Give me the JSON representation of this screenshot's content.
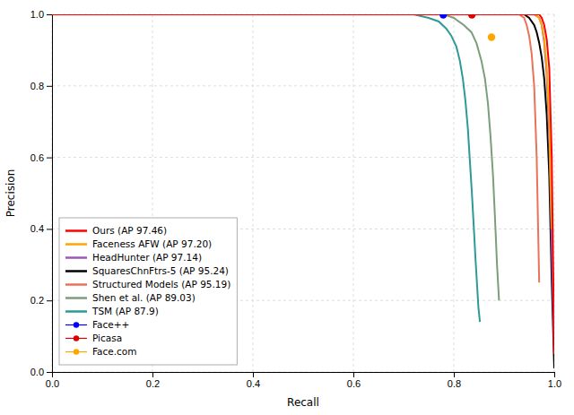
{
  "chart_data": {
    "type": "line",
    "xlabel": "Recall",
    "ylabel": "Precision",
    "xlim": [
      0.0,
      1.0
    ],
    "ylim": [
      0.0,
      1.0
    ],
    "xticks": [
      {
        "value": 0.0,
        "label": "0.0"
      },
      0.2,
      0.4,
      0.6,
      0.8,
      {
        "value": 1.0,
        "label": "1.0"
      }
    ],
    "yticks": [
      {
        "value": 0.0,
        "label": "0.0"
      },
      0.2,
      0.4,
      0.6,
      0.8,
      {
        "value": 1.0,
        "label": "1.0"
      }
    ],
    "grid": true,
    "legend": "lower left",
    "series": [
      {
        "name": "Ours (AP 97.46)",
        "color": "#FF0000",
        "type": "line",
        "x": [
          0.0,
          0.93,
          0.94,
          0.95,
          0.96,
          0.965,
          0.97,
          0.975,
          0.98,
          0.985,
          0.99,
          0.995,
          1.0
        ],
        "values": [
          1.0,
          1.0,
          1.0,
          1.0,
          1.0,
          1.0,
          1.0,
          0.99,
          0.97,
          0.93,
          0.85,
          0.6,
          0.05
        ]
      },
      {
        "name": "Faceness AFW (AP 97.20)",
        "color": "#FFA500",
        "type": "line",
        "x": [
          0.0,
          0.93,
          0.94,
          0.95,
          0.96,
          0.965,
          0.97,
          0.975,
          0.98,
          0.985,
          0.99,
          0.995
        ],
        "values": [
          1.0,
          1.0,
          1.0,
          1.0,
          1.0,
          0.995,
          0.99,
          0.97,
          0.93,
          0.85,
          0.7,
          0.4
        ]
      },
      {
        "name": "HeadHunter (AP 97.14)",
        "color": "#9B59B6",
        "type": "line",
        "x": [
          0.0,
          0.93,
          0.94,
          0.95,
          0.96,
          0.965,
          0.97,
          0.975,
          0.98,
          0.985,
          0.99,
          0.995,
          1.0
        ],
        "values": [
          1.0,
          1.0,
          1.0,
          1.0,
          1.0,
          0.995,
          0.99,
          0.97,
          0.92,
          0.83,
          0.65,
          0.35,
          0.05
        ]
      },
      {
        "name": "SquaresChnFtrs-5 (AP 95.24)",
        "color": "#000000",
        "type": "line",
        "x": [
          0.0,
          0.9,
          0.92,
          0.94,
          0.95,
          0.96,
          0.965,
          0.97,
          0.975,
          0.98,
          0.985,
          0.99,
          0.995,
          1.0
        ],
        "values": [
          1.0,
          1.0,
          1.0,
          1.0,
          0.99,
          0.97,
          0.95,
          0.92,
          0.88,
          0.82,
          0.72,
          0.55,
          0.25,
          0.01
        ]
      },
      {
        "name": "Structured Models (AP 95.19)",
        "color": "#E8735A",
        "type": "line",
        "x": [
          0.0,
          0.9,
          0.92,
          0.93,
          0.94,
          0.945,
          0.95,
          0.955,
          0.96,
          0.965,
          0.97
        ],
        "values": [
          1.0,
          1.0,
          1.0,
          1.0,
          0.99,
          0.97,
          0.94,
          0.89,
          0.8,
          0.6,
          0.25
        ]
      },
      {
        "name": "Shen et al. (AP 89.03)",
        "color": "#7B9E7B",
        "type": "line",
        "x": [
          0.0,
          0.78,
          0.8,
          0.82,
          0.835,
          0.845,
          0.855,
          0.862,
          0.868,
          0.873,
          0.878,
          0.882,
          0.886,
          0.89
        ],
        "values": [
          1.0,
          1.0,
          0.99,
          0.97,
          0.95,
          0.92,
          0.87,
          0.82,
          0.75,
          0.66,
          0.55,
          0.43,
          0.3,
          0.2
        ]
      },
      {
        "name": "TSM (AP 87.9)",
        "color": "#2E9999",
        "type": "line",
        "x": [
          0.0,
          0.72,
          0.75,
          0.77,
          0.785,
          0.795,
          0.805,
          0.812,
          0.818,
          0.823,
          0.828,
          0.832,
          0.836,
          0.84,
          0.843,
          0.846,
          0.849,
          0.852
        ],
        "values": [
          1.0,
          1.0,
          0.99,
          0.98,
          0.96,
          0.94,
          0.91,
          0.87,
          0.82,
          0.76,
          0.68,
          0.59,
          0.5,
          0.4,
          0.32,
          0.25,
          0.18,
          0.14
        ]
      },
      {
        "name": "Face++",
        "color": "#0000FF",
        "type": "scatter",
        "x": [
          0.779
        ],
        "values": [
          0.9985
        ]
      },
      {
        "name": "Picasa",
        "color": "#DD0000",
        "type": "scatter",
        "x": [
          0.836
        ],
        "values": [
          0.9985
        ]
      },
      {
        "name": "Face.com",
        "color": "#FFA500",
        "type": "scatter",
        "x": [
          0.875
        ],
        "values": [
          0.936
        ]
      }
    ]
  }
}
